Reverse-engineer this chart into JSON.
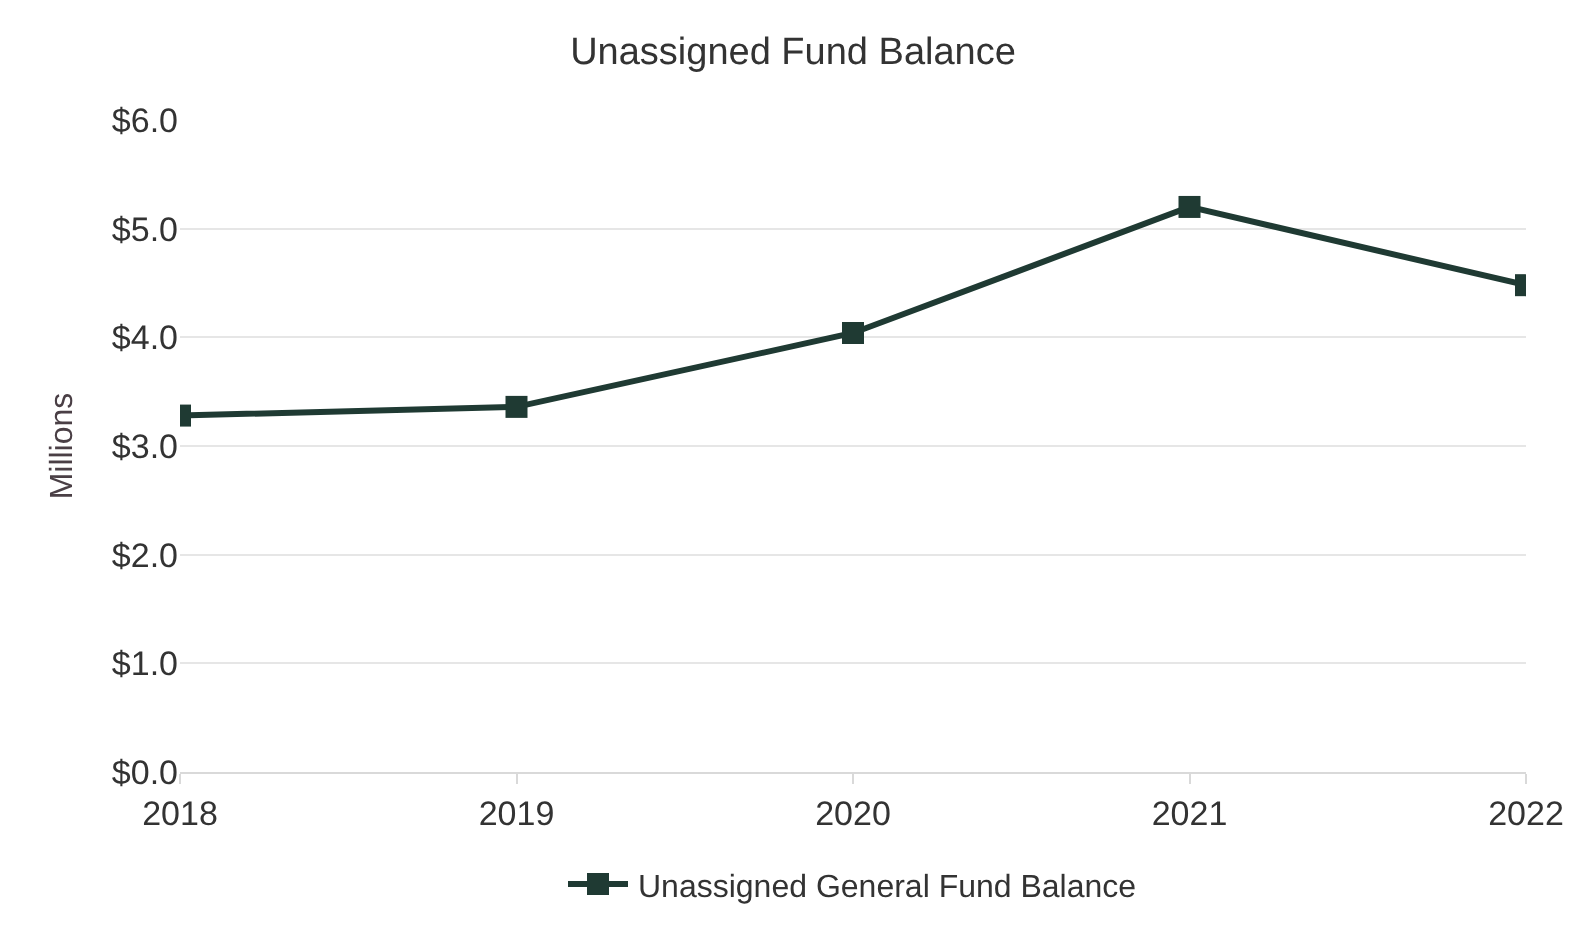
{
  "chart_data": {
    "type": "line",
    "title": "Unassigned Fund Balance",
    "ylabel": "Millions",
    "x": [
      2018,
      2019,
      2020,
      2021,
      2022
    ],
    "xlim": [
      2018,
      2022
    ],
    "xticks": [
      2018,
      2019,
      2020,
      2021,
      2022
    ],
    "ylim": [
      0,
      6
    ],
    "yticks": [
      {
        "value": 0,
        "label": "$0.0"
      },
      {
        "value": 1,
        "label": "$1.0"
      },
      {
        "value": 2,
        "label": "$2.0"
      },
      {
        "value": 3,
        "label": "$3.0"
      },
      {
        "value": 4,
        "label": "$4.0"
      },
      {
        "value": 5,
        "label": "$5.0"
      },
      {
        "value": 6,
        "label": "$6.0"
      }
    ],
    "series": [
      {
        "name": "Unassigned General Fund Balance",
        "color": "#1f3a33",
        "values": [
          3.28,
          3.36,
          4.04,
          5.2,
          4.48
        ]
      }
    ],
    "grid": "y",
    "legend": "bottom",
    "marker": "square",
    "line_style": "solid"
  }
}
